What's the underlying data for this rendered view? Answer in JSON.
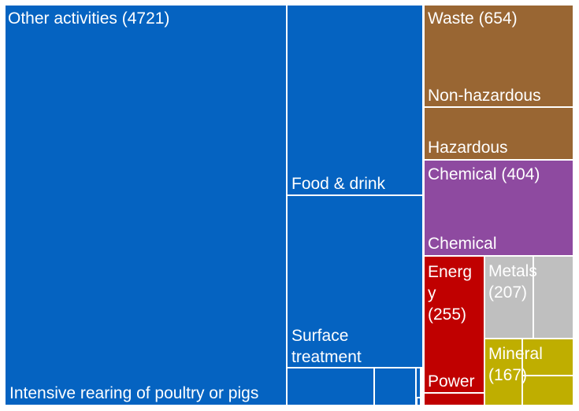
{
  "chart_data": {
    "type": "treemap",
    "groups": [
      {
        "name": "Other activities",
        "total": 4721,
        "label": "Other activities (4721)",
        "color": "#0563C1",
        "subsectors": [
          {
            "label": "Intensive rearing of poultry or pigs"
          },
          {
            "label": "Food & drink"
          },
          {
            "label": "Surface treatment"
          },
          {
            "label": ""
          },
          {
            "label": ""
          },
          {
            "label": ""
          },
          {
            "label": ""
          }
        ]
      },
      {
        "name": "Waste",
        "total": 654,
        "label": "Waste (654)",
        "color": "#996633",
        "subsectors": [
          {
            "label": "Non-hazardous"
          },
          {
            "label": "Hazardous"
          }
        ]
      },
      {
        "name": "Chemical",
        "total": 404,
        "label": "Chemical (404)",
        "color": "#8E4AA0",
        "subsectors": [
          {
            "label": "Chemical"
          }
        ]
      },
      {
        "name": "Energy",
        "total": 255,
        "label_lines": [
          "Energ",
          "y",
          "(255)"
        ],
        "color": "#C00000",
        "subsectors": [
          {
            "label": "Power"
          },
          {
            "label": ""
          }
        ]
      },
      {
        "name": "Metals",
        "total": 207,
        "label_lines": [
          "Metals",
          "(207)"
        ],
        "color": "#BFBFBF",
        "subsectors": [
          {
            "label": ""
          },
          {
            "label": ""
          }
        ]
      },
      {
        "name": "Mineral",
        "total": 167,
        "label_lines": [
          "Mineral",
          "(167)"
        ],
        "color": "#BFAE00",
        "subsectors": [
          {
            "label": ""
          },
          {
            "label": ""
          },
          {
            "label": ""
          }
        ]
      }
    ]
  }
}
